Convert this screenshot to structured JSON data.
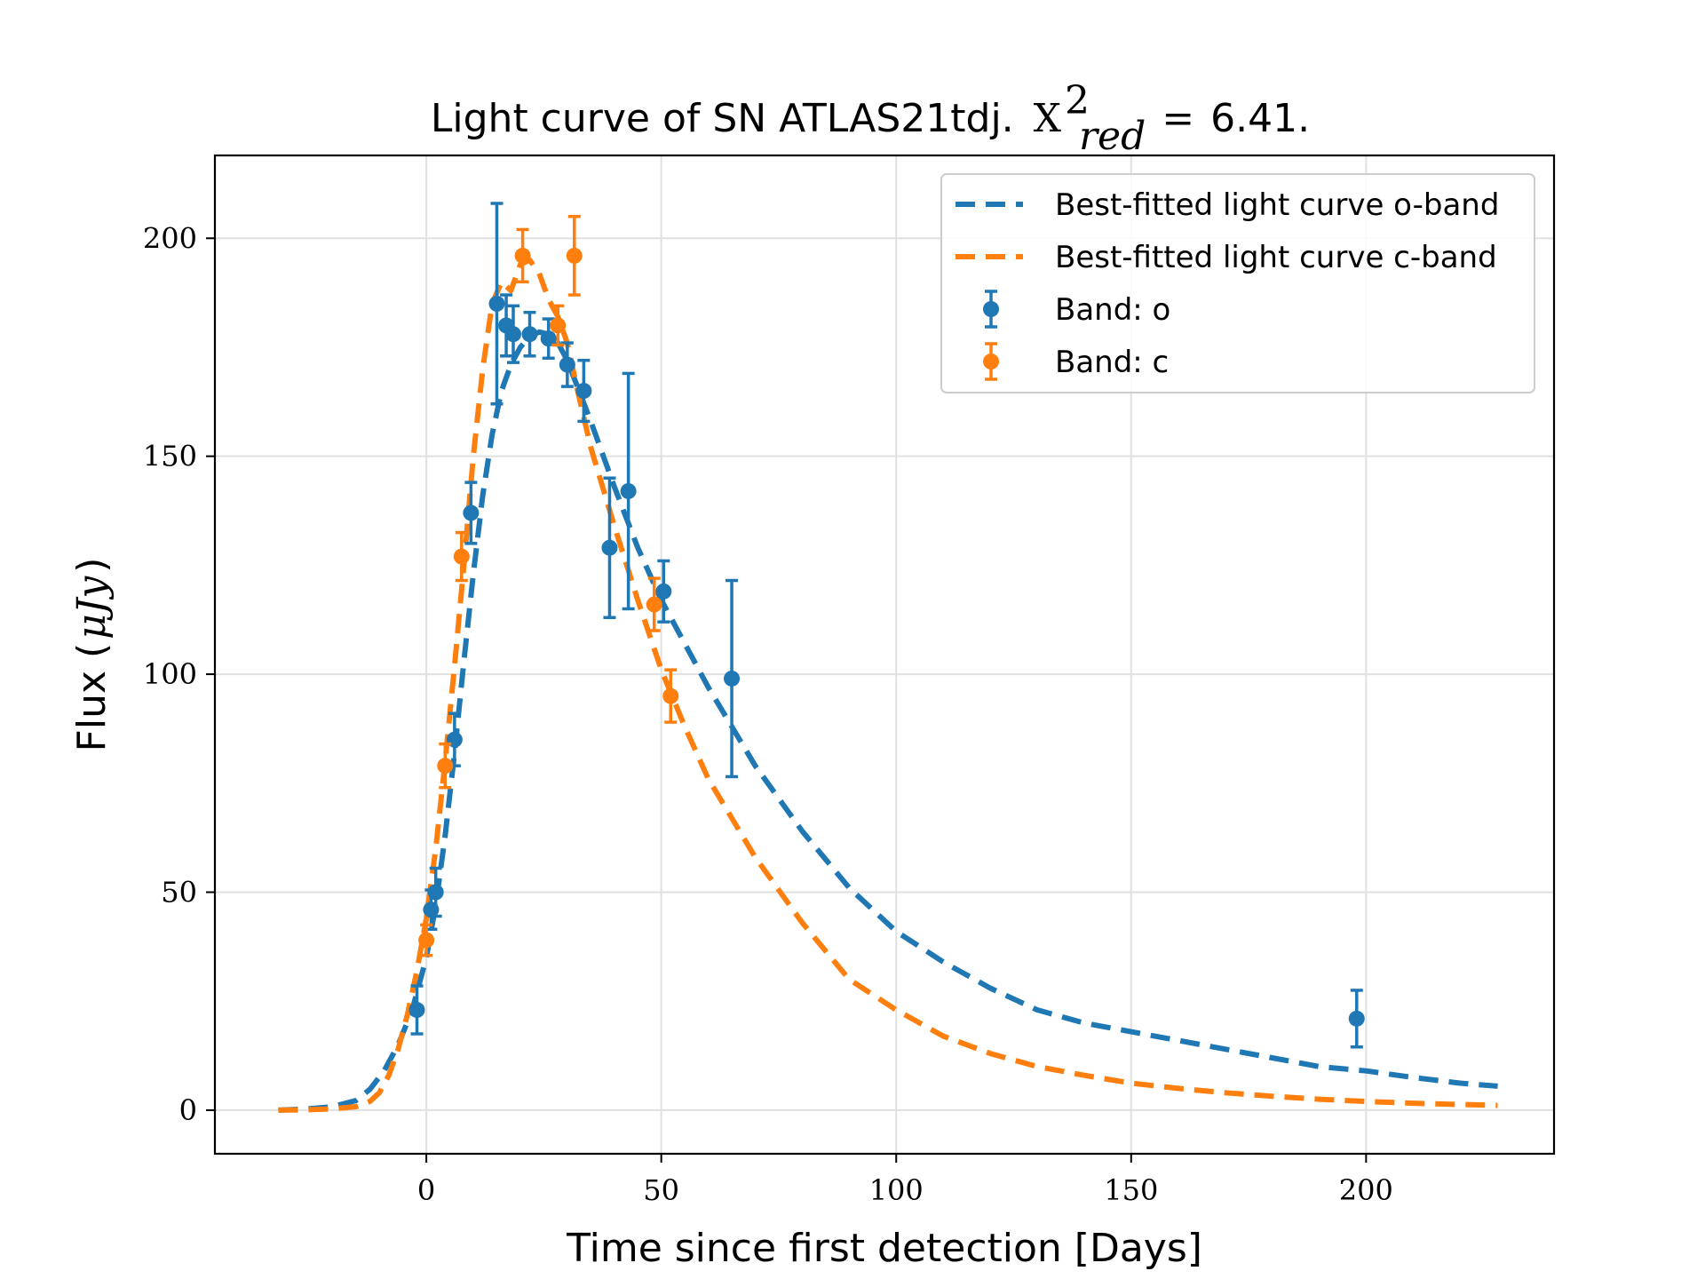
{
  "chart_data": {
    "type": "scatter",
    "title": {
      "prefix": "Light curve of SN ATLAS21tdj.",
      "chi_symbol": "X",
      "chi_superscript": "2",
      "chi_subscript": "red",
      "equals": "=",
      "value": "6.41."
    },
    "xlabel": "Time since first detection [Days]",
    "ylabel": {
      "prefix": "Flux (",
      "unit": "μJy",
      "suffix": ")"
    },
    "xlim": [
      -45,
      240
    ],
    "ylim": [
      -10,
      219
    ],
    "xticks": [
      0,
      50,
      100,
      150,
      200
    ],
    "yticks": [
      0,
      50,
      100,
      150,
      200
    ],
    "grid": true,
    "legend": "top-right",
    "colors": {
      "o": "#1f77b4",
      "c": "#ff7f0e"
    },
    "lines": [
      {
        "name": "Best-fitted light curve o-band",
        "band": "o",
        "style": "dashed",
        "x": [
          -31.5,
          -25,
          -20,
          -15,
          -12,
          -9,
          -6,
          -3,
          0,
          2,
          4,
          6,
          8,
          10,
          12,
          14,
          16,
          18,
          20,
          22,
          24,
          26,
          28,
          30,
          35,
          40,
          45,
          50,
          60,
          70,
          80,
          90,
          100,
          110,
          120,
          130,
          140,
          150,
          160,
          170,
          180,
          190,
          200,
          210,
          220,
          228
        ],
        "y": [
          0,
          0.3,
          0.8,
          2.2,
          4.8,
          9,
          15,
          23,
          35,
          47,
          63,
          82,
          103,
          123,
          141,
          155,
          165,
          171,
          175,
          177.5,
          178.5,
          178,
          176,
          172,
          158,
          143,
          129,
          117,
          97,
          79,
          64,
          51,
          41,
          34,
          28,
          23,
          20,
          18,
          16,
          14,
          12,
          10,
          9,
          7.5,
          6.2,
          5.5
        ]
      },
      {
        "name": "Best-fitted light curve c-band",
        "band": "c",
        "style": "dashed",
        "x": [
          -31.5,
          -25,
          -20,
          -15,
          -12,
          -10,
          -8,
          -6,
          -4,
          -2,
          0,
          2,
          4,
          6,
          8,
          10,
          12,
          14,
          16,
          18,
          20,
          22,
          24,
          26,
          28,
          30,
          32,
          35,
          40,
          45,
          50,
          55,
          60,
          70,
          80,
          90,
          100,
          110,
          120,
          130,
          140,
          150,
          160,
          170,
          180,
          190,
          200,
          210,
          220,
          228
        ],
        "y": [
          0,
          0.1,
          0.3,
          0.8,
          2,
          4,
          8,
          14,
          22,
          32,
          44,
          60,
          80,
          102,
          125,
          150,
          170,
          185,
          190,
          188,
          194,
          195,
          192,
          186,
          182,
          176,
          166,
          152,
          134,
          117,
          101,
          88,
          76,
          58,
          43,
          30,
          23,
          17,
          13,
          10,
          8,
          6.2,
          5,
          4,
          3.2,
          2.5,
          2,
          1.6,
          1.3,
          1.1
        ]
      }
    ],
    "series": [
      {
        "name": "Band: o",
        "band": "o",
        "points": [
          {
            "x": -2,
            "y": 23,
            "err": 5.5
          },
          {
            "x": 1,
            "y": 46,
            "err": 4.5
          },
          {
            "x": 2,
            "y": 50,
            "err": 5.5
          },
          {
            "x": 6,
            "y": 85,
            "err": 6
          },
          {
            "x": 9.5,
            "y": 137,
            "err": 7
          },
          {
            "x": 15,
            "y": 185,
            "err": 23
          },
          {
            "x": 17,
            "y": 180,
            "err": 7
          },
          {
            "x": 18.5,
            "y": 178,
            "err": 6.5
          },
          {
            "x": 22,
            "y": 178,
            "err": 5
          },
          {
            "x": 26,
            "y": 177,
            "err": 4.5
          },
          {
            "x": 30,
            "y": 171,
            "err": 5
          },
          {
            "x": 33.5,
            "y": 165,
            "err": 7
          },
          {
            "x": 39,
            "y": 129,
            "err": 16
          },
          {
            "x": 43,
            "y": 142,
            "err": 27
          },
          {
            "x": 50.5,
            "y": 119,
            "err": 7
          },
          {
            "x": 65,
            "y": 99,
            "err": 22.5
          },
          {
            "x": 198,
            "y": 21,
            "err": 6.5
          }
        ]
      },
      {
        "name": "Band: c",
        "band": "c",
        "points": [
          {
            "x": 0,
            "y": 39,
            "err": 3.5
          },
          {
            "x": 4,
            "y": 79,
            "err": 5
          },
          {
            "x": 7.5,
            "y": 127,
            "err": 5.5
          },
          {
            "x": 20.5,
            "y": 196,
            "err": 6
          },
          {
            "x": 28,
            "y": 180,
            "err": 4.5
          },
          {
            "x": 31.5,
            "y": 196,
            "err": 9
          },
          {
            "x": 48.5,
            "y": 116,
            "err": 6
          },
          {
            "x": 52,
            "y": 95,
            "err": 6
          }
        ]
      }
    ]
  }
}
